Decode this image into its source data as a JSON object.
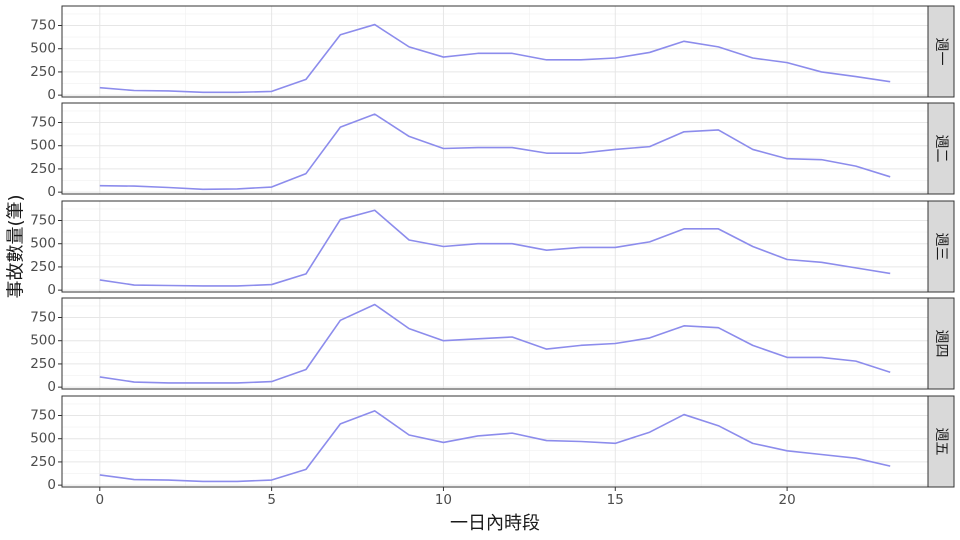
{
  "chart_data": {
    "type": "line",
    "xlabel": "一日內時段",
    "ylabel": "事故數量(筆)",
    "xlim": [
      -1.1,
      24.1
    ],
    "ylim": [
      -20,
      960
    ],
    "x_ticks": [
      0,
      5,
      10,
      15,
      20
    ],
    "y_ticks": [
      0,
      250,
      500,
      750
    ],
    "grid": true,
    "line_color": "#8c8cec",
    "x": [
      0,
      1,
      2,
      3,
      4,
      5,
      6,
      7,
      8,
      9,
      10,
      11,
      12,
      13,
      14,
      15,
      16,
      17,
      18,
      19,
      20,
      21,
      22,
      23
    ],
    "panels": [
      {
        "label": "週一",
        "values": [
          80,
          50,
          45,
          30,
          30,
          40,
          170,
          650,
          760,
          520,
          410,
          450,
          450,
          380,
          380,
          400,
          460,
          580,
          520,
          400,
          350,
          250,
          200,
          145
        ]
      },
      {
        "label": "週二",
        "values": [
          70,
          65,
          50,
          30,
          35,
          55,
          200,
          700,
          840,
          600,
          470,
          480,
          480,
          420,
          420,
          460,
          490,
          650,
          670,
          460,
          360,
          350,
          280,
          165
        ]
      },
      {
        "label": "週三",
        "values": [
          110,
          55,
          50,
          45,
          45,
          60,
          175,
          760,
          860,
          540,
          470,
          500,
          500,
          430,
          460,
          460,
          520,
          660,
          660,
          470,
          330,
          300,
          240,
          180
        ]
      },
      {
        "label": "週四",
        "values": [
          110,
          55,
          45,
          45,
          45,
          60,
          190,
          720,
          890,
          630,
          500,
          520,
          540,
          410,
          450,
          470,
          530,
          660,
          640,
          450,
          320,
          320,
          280,
          160
        ]
      },
      {
        "label": "週五",
        "values": [
          110,
          60,
          55,
          40,
          40,
          55,
          170,
          660,
          800,
          540,
          460,
          530,
          560,
          480,
          470,
          450,
          570,
          760,
          640,
          450,
          370,
          330,
          290,
          205
        ]
      }
    ]
  }
}
